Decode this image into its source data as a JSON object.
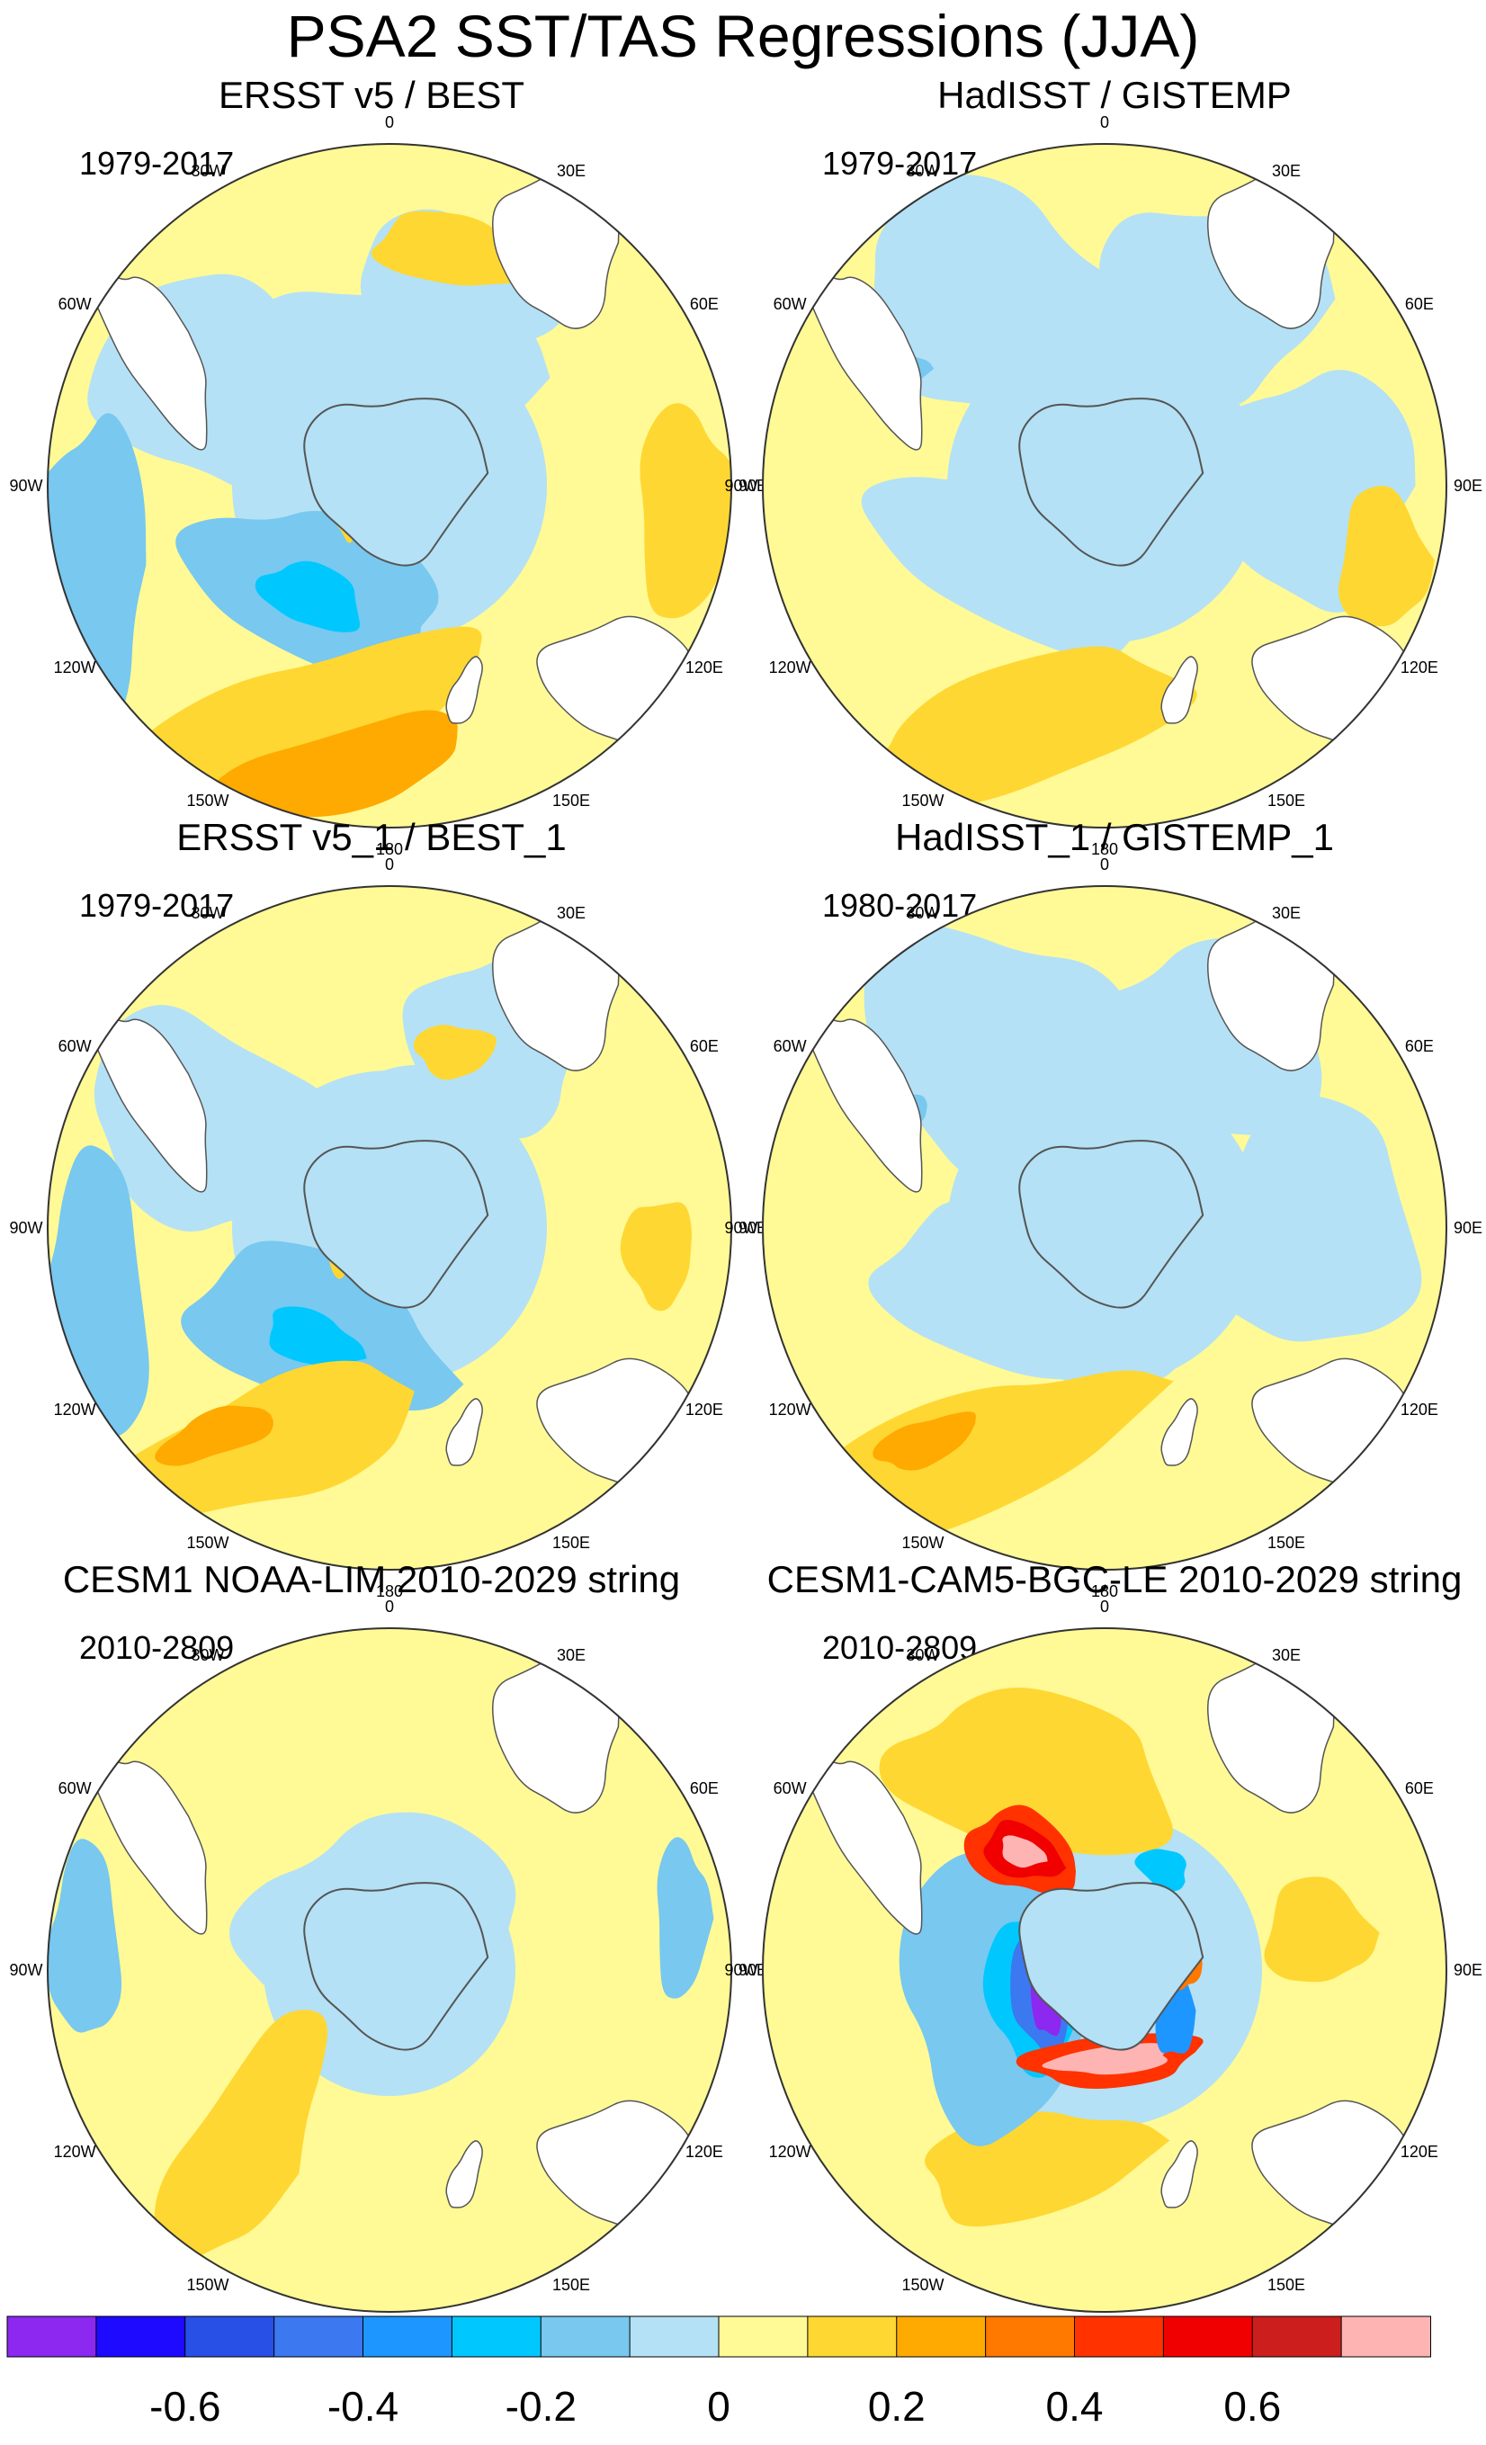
{
  "title": "PSA2 SST/TAS Regressions (JJA)",
  "longitude_labels": [
    "0",
    "30E",
    "60E",
    "90E",
    "120E",
    "150E",
    "180",
    "150W",
    "120W",
    "90W",
    "60W",
    "30W"
  ],
  "panels": [
    {
      "title": "ERSST v5 / BEST",
      "period": "1979-2017",
      "style": "obs_a"
    },
    {
      "title": "HadISST / GISTEMP",
      "period": "1979-2017",
      "style": "obs_b"
    },
    {
      "title": "ERSST v5_1 / BEST_1",
      "period": "1979-2017",
      "style": "obs_a2"
    },
    {
      "title": "HadISST_1 / GISTEMP_1",
      "period": "1980-2017",
      "style": "obs_b2"
    },
    {
      "title": "CESM1 NOAA-LIM 2010-2029 string",
      "period": "2010-2809",
      "style": "lim"
    },
    {
      "title": "CESM1-CAM5-BGC-LE 2010-2029 string",
      "period": "2010-2809",
      "style": "le"
    }
  ],
  "colorbar": {
    "colors": [
      "#8c28f0",
      "#1e0aff",
      "#2850e6",
      "#3c78f0",
      "#1e96ff",
      "#00c8ff",
      "#78c8f0",
      "#b4e1f5",
      "#fffa96",
      "#ffd732",
      "#ffaa00",
      "#ff7800",
      "#ff3200",
      "#f00000",
      "#cd1e1e",
      "#ffb4b4"
    ],
    "tick_labels": [
      "-0.6",
      "-0.4",
      "-0.2",
      "0",
      "0.2",
      "0.4",
      "0.6"
    ]
  }
}
